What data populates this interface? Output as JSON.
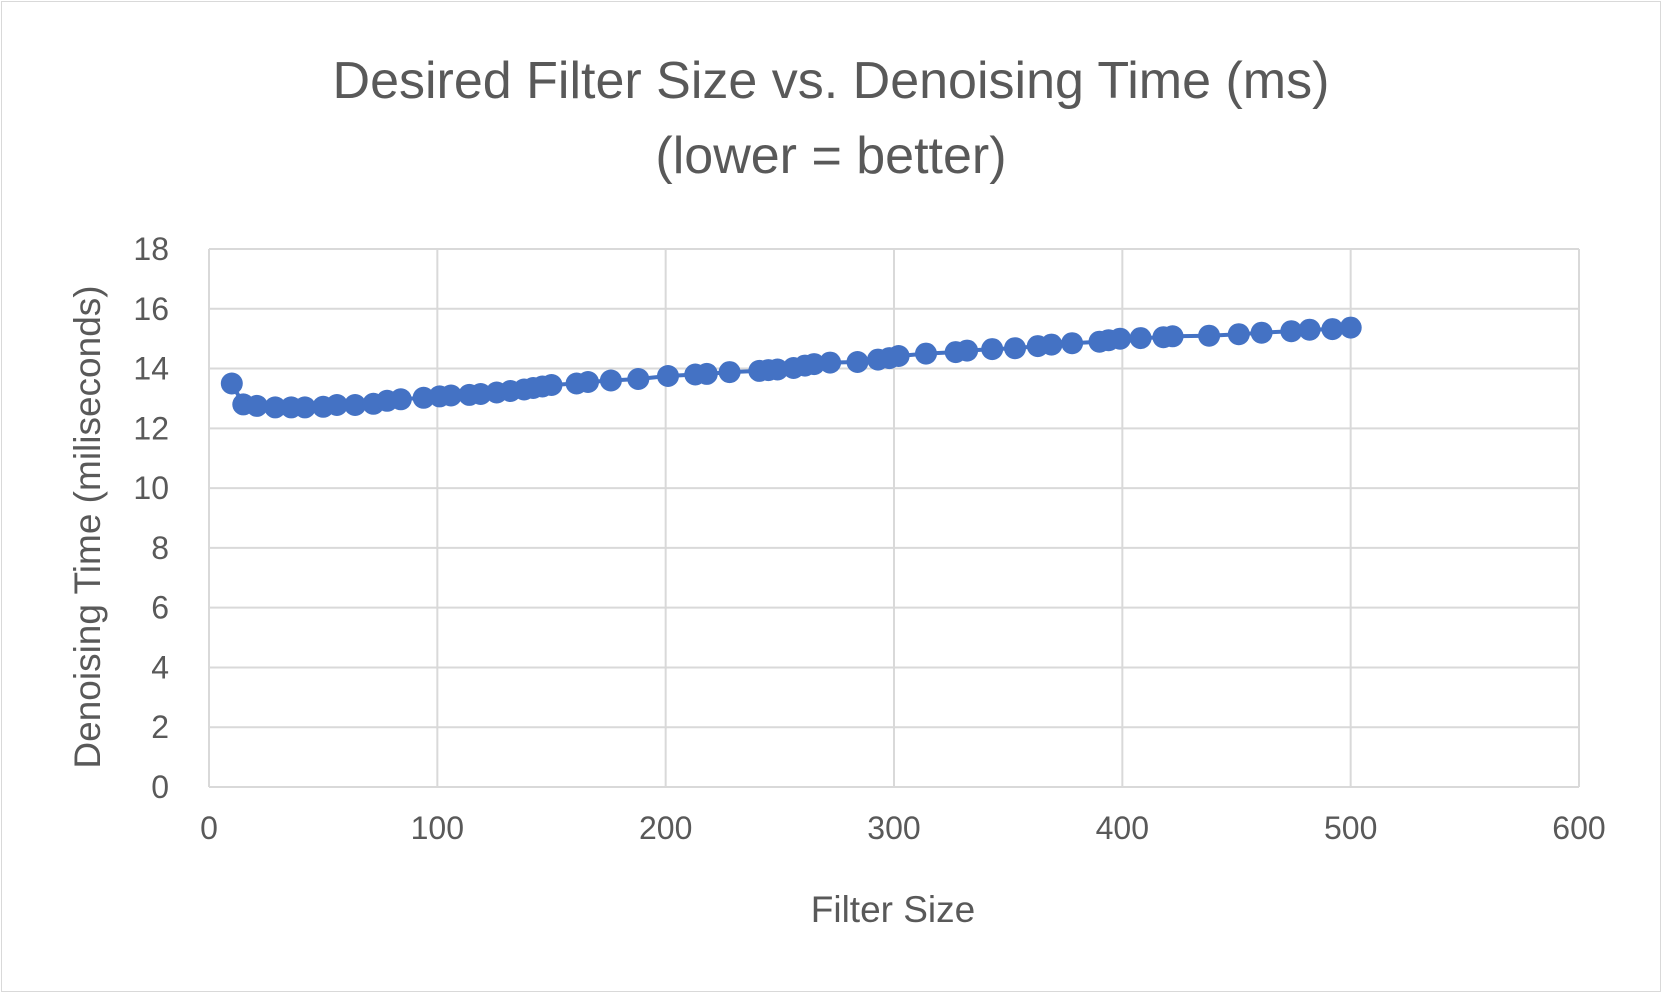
{
  "chart_data": {
    "type": "line",
    "title": "Desired Filter Size vs. Denoising Time (ms)",
    "subtitle": "(lower = better)",
    "xlabel": "Filter Size",
    "ylabel": "Denoising Time (miliseconds)",
    "xlim": [
      0,
      600
    ],
    "ylim": [
      0,
      18
    ],
    "xticks": [
      0,
      100,
      200,
      300,
      400,
      500,
      600
    ],
    "yticks": [
      0,
      2,
      4,
      6,
      8,
      10,
      12,
      14,
      16,
      18
    ],
    "grid": true,
    "legend": "none",
    "markers": true,
    "colors": {
      "series": "#4472c4",
      "grid": "#d9d9d9",
      "text": "#595959"
    },
    "series": [
      {
        "x": [
          10,
          15,
          21,
          29,
          36,
          42,
          50,
          56,
          64,
          72,
          78,
          84,
          94,
          101,
          106,
          114,
          119,
          126,
          132,
          138,
          142,
          146,
          150,
          161,
          166,
          176,
          188,
          201,
          213,
          218,
          228,
          241,
          245,
          249,
          256,
          261,
          265,
          272,
          284,
          293,
          298,
          302,
          314,
          327,
          332,
          343,
          353,
          363,
          369,
          378,
          390,
          394,
          399,
          408,
          418,
          422,
          438,
          451,
          461,
          474,
          482,
          492,
          500
        ],
        "y": [
          13.5,
          12.8,
          12.75,
          12.7,
          12.7,
          12.7,
          12.72,
          12.78,
          12.78,
          12.82,
          12.92,
          12.97,
          13.02,
          13.07,
          13.1,
          13.12,
          13.15,
          13.2,
          13.25,
          13.3,
          13.35,
          13.4,
          13.45,
          13.5,
          13.55,
          13.6,
          13.65,
          13.75,
          13.8,
          13.82,
          13.88,
          13.92,
          13.95,
          13.97,
          14.02,
          14.1,
          14.15,
          14.2,
          14.22,
          14.3,
          14.35,
          14.42,
          14.5,
          14.55,
          14.6,
          14.65,
          14.68,
          14.75,
          14.8,
          14.85,
          14.9,
          14.95,
          15.0,
          15.02,
          15.05,
          15.08,
          15.1,
          15.15,
          15.2,
          15.25,
          15.3,
          15.32,
          15.37
        ]
      }
    ]
  }
}
